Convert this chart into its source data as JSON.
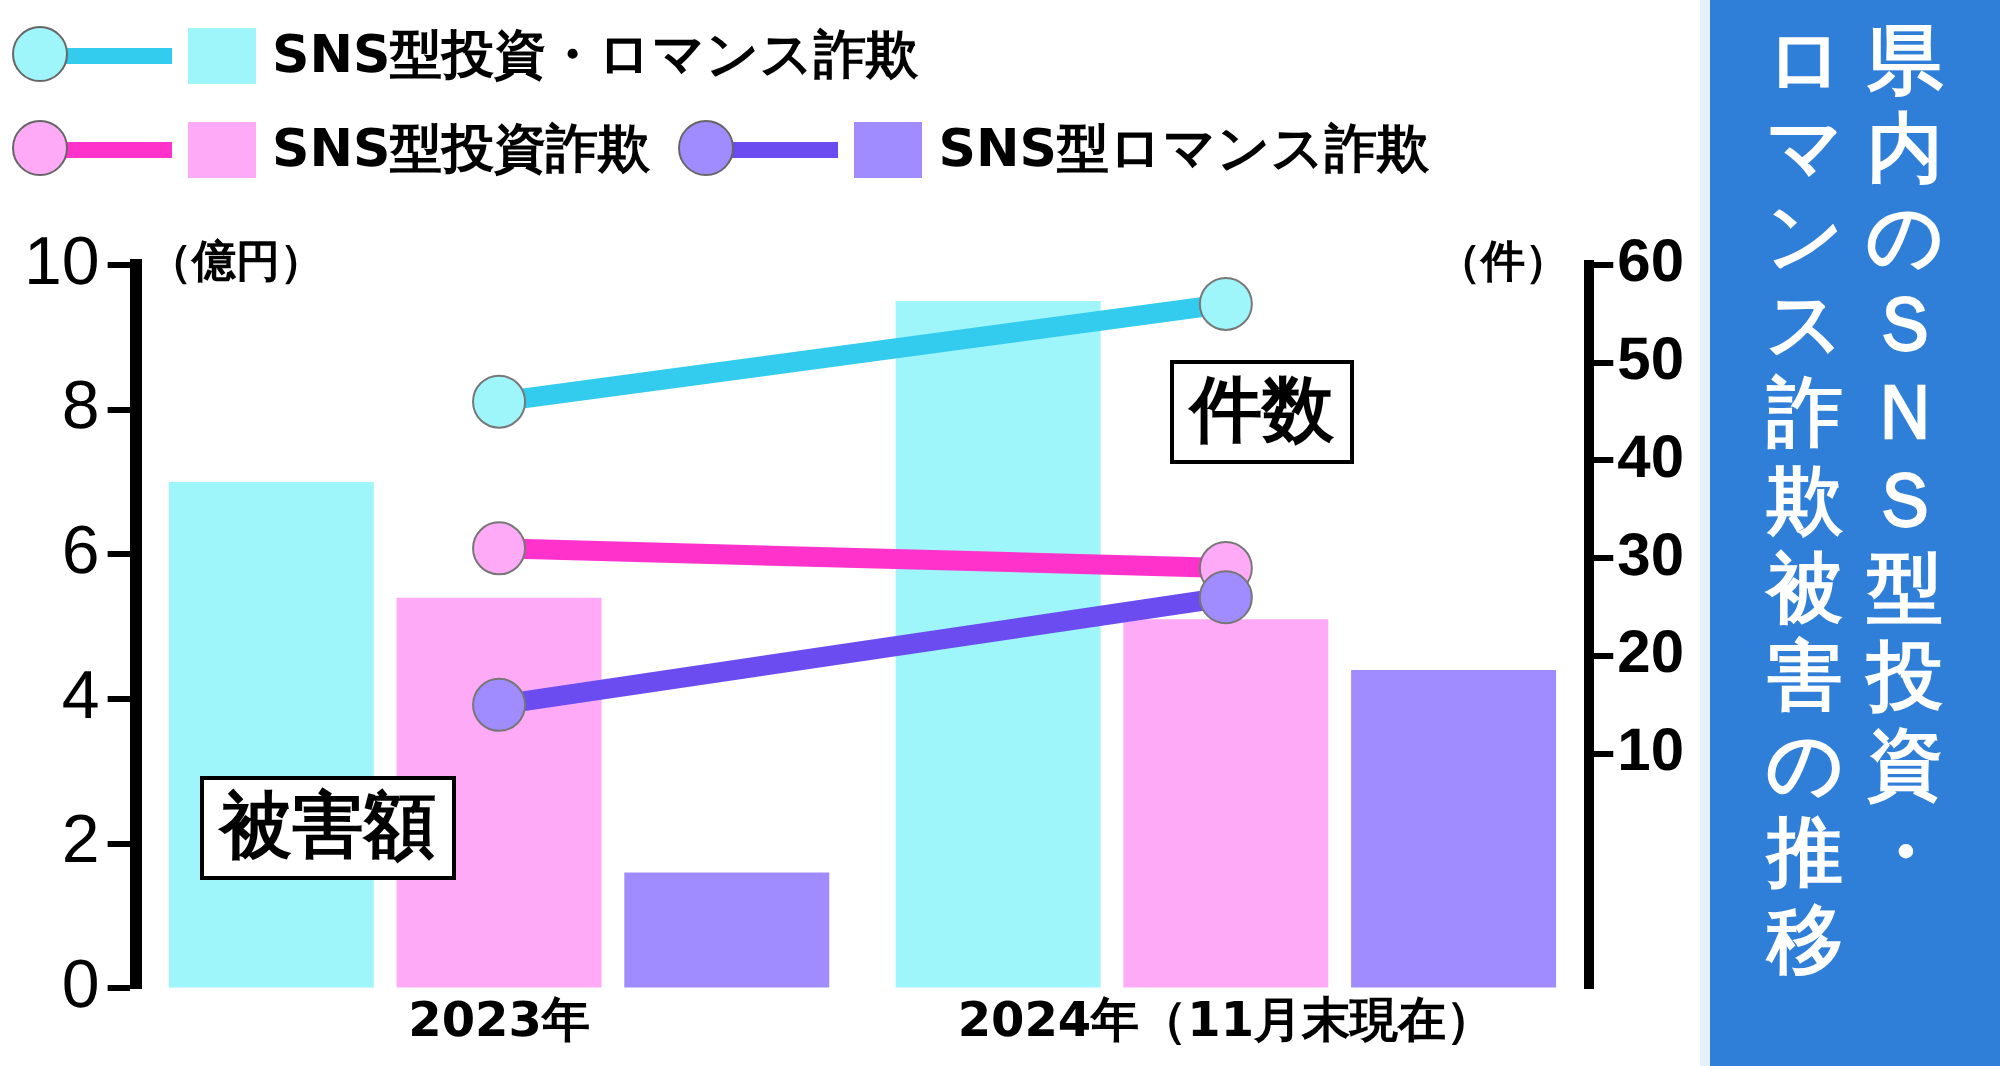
{
  "chart_data": {
    "type": "bar",
    "title": "県内のＳＮＳ型投資・ロマンス詐欺被害の推移",
    "categories": [
      "2023年",
      "2024年（11月末現在）"
    ],
    "ylabel": "（億円）",
    "y2label": "（件）",
    "series": [
      {
        "name": "SNS型投資・ロマンス詐欺",
        "color": "#9ef6fa",
        "values": [
          7.0,
          9.5
        ]
      },
      {
        "name": "SNS型投資詐欺",
        "color": "#ffaaf6",
        "values": [
          5.4,
          5.1
        ]
      },
      {
        "name": "SNS型ロマンス詐欺",
        "color": "#a08cff",
        "values": [
          1.6,
          4.4
        ]
      },
      {
        "type": "line",
        "axis": "y2",
        "color": "#33ccee",
        "values": [
          46,
          56
        ]
      },
      {
        "type": "line",
        "axis": "y2",
        "color": "#ff33cc",
        "values": [
          31,
          29
        ]
      },
      {
        "type": "line",
        "axis": "y2",
        "color": "#6a4cf0",
        "values": [
          15,
          26
        ]
      }
    ],
    "ylim": [
      0,
      10
    ],
    "yticks": [
      0,
      2,
      4,
      6,
      8,
      10
    ],
    "y2lim": [
      -14,
      60
    ],
    "y2ticks": [
      10,
      20,
      30,
      40,
      50,
      60
    ],
    "annotations": [
      "被害額",
      "件数"
    ],
    "marker": "circle",
    "legend": "top left",
    "grid": false
  }
}
